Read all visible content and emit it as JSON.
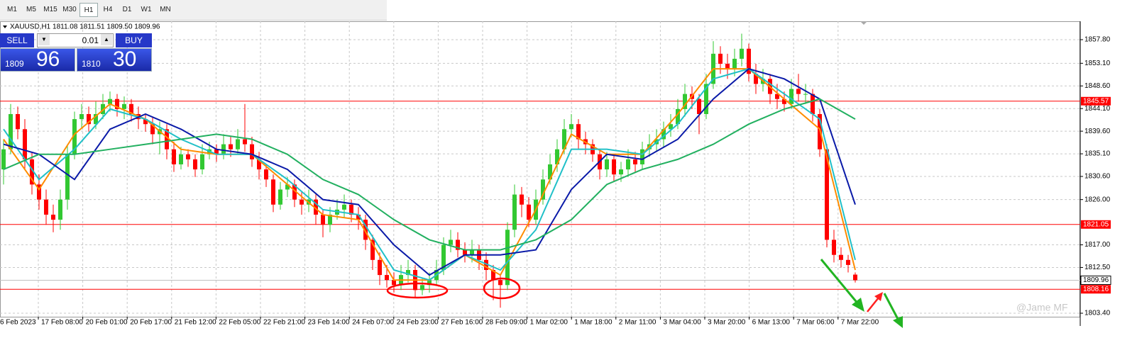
{
  "toolbar": {
    "timeframes": [
      "M1",
      "M5",
      "M15",
      "M30",
      "H1",
      "H4",
      "D1",
      "W1",
      "MN"
    ],
    "active": "H1"
  },
  "trade_panel": {
    "sell": "SELL",
    "buy": "BUY",
    "lot": "0.01",
    "sell_big": "1809",
    "sell_pips": "96",
    "buy_big": "1810",
    "buy_pips": "30"
  },
  "chart_data": {
    "type": "candlestick",
    "title": "XAUUSD,H1  1811.08 1811.51 1809.50 1809.96",
    "open": [
      1832,
      1836,
      1843,
      1840,
      1834,
      1829,
      1826,
      1823,
      1822,
      1826,
      1835,
      1842,
      1843,
      1841,
      1843,
      1845,
      1846,
      1844,
      1845,
      1843,
      1842,
      1841,
      1839,
      1840,
      1836,
      1833,
      1835,
      1834,
      1832,
      1835,
      1836,
      1835,
      1837,
      1836,
      1838,
      1837,
      1834,
      1832,
      1830,
      1825,
      1828,
      1829,
      1826,
      1825,
      1826,
      1823,
      1821,
      1823,
      1824,
      1825,
      1823,
      1822,
      1818,
      1814,
      1811,
      1810,
      1809,
      1811,
      1812,
      1808,
      1809,
      1810,
      1812,
      1817,
      1818,
      1816,
      1815,
      1816,
      1814,
      1812,
      1810,
      1809,
      1820,
      1827,
      1825,
      1822,
      1826,
      1830,
      1833,
      1836,
      1840,
      1841,
      1838,
      1837,
      1835,
      1832,
      1834,
      1831,
      1832,
      1834,
      1833,
      1836,
      1837,
      1838,
      1840,
      1841,
      1844,
      1847,
      1846,
      1843,
      1849,
      1855,
      1853,
      1852,
      1854,
      1856,
      1851,
      1849,
      1850,
      1847,
      1846,
      1845,
      1848,
      1847,
      1847,
      1843,
      1836,
      1818,
      1815,
      1814,
      1811.08
    ],
    "high": [
      1838,
      1845,
      1844.5,
      1842,
      1835.5,
      1831,
      1828,
      1825,
      1828,
      1837,
      1843.5,
      1845,
      1844.5,
      1845.5,
      1847,
      1847.5,
      1847,
      1846.5,
      1846,
      1844.5,
      1843,
      1842.5,
      1841.5,
      1841,
      1837.5,
      1836.5,
      1836,
      1835,
      1837,
      1837.5,
      1837,
      1839,
      1838.5,
      1840,
      1845,
      1838.5,
      1835.5,
      1833,
      1831,
      1829.5,
      1830.5,
      1830,
      1827.5,
      1828,
      1827,
      1824,
      1824.5,
      1826,
      1827,
      1826,
      1824.5,
      1823,
      1819,
      1815.5,
      1813,
      1811.5,
      1813,
      1814,
      1813,
      1810.5,
      1811.5,
      1814,
      1818.5,
      1820,
      1819.5,
      1817.5,
      1818,
      1817,
      1815.5,
      1813,
      1811,
      1821.5,
      1829,
      1828.5,
      1826.5,
      1828,
      1832,
      1835,
      1838,
      1842,
      1843,
      1842,
      1839.5,
      1838,
      1836,
      1835.5,
      1835,
      1833.5,
      1836,
      1835.5,
      1837.5,
      1839,
      1840,
      1841.5,
      1843,
      1846,
      1849,
      1848.5,
      1847,
      1851,
      1857.5,
      1856.5,
      1855,
      1856,
      1859,
      1857,
      1853,
      1852,
      1851,
      1849,
      1847.5,
      1850,
      1851,
      1849,
      1848,
      1844,
      1837,
      1820,
      1816.5,
      1815,
      1811.51
    ],
    "low": [
      1829,
      1835,
      1838,
      1832,
      1827,
      1824,
      1821,
      1819.5,
      1820,
      1824,
      1834,
      1840,
      1839.5,
      1840,
      1842,
      1843.5,
      1842.5,
      1842,
      1841.5,
      1840,
      1839.5,
      1837,
      1835,
      1834,
      1831.5,
      1832,
      1832.5,
      1830.5,
      1831,
      1834,
      1833.5,
      1834,
      1834.5,
      1835,
      1835.5,
      1832.5,
      1830,
      1828.5,
      1823.5,
      1824,
      1826.5,
      1824.5,
      1823,
      1823.5,
      1821,
      1818.5,
      1819.5,
      1822,
      1822.5,
      1821.5,
      1820,
      1816,
      1812,
      1809,
      1808.5,
      1807.5,
      1808,
      1809.5,
      1806.5,
      1807,
      1807.5,
      1809,
      1811,
      1815.5,
      1814.5,
      1813.5,
      1813.5,
      1812,
      1810,
      1806,
      1804.5,
      1808,
      1818.5,
      1822.5,
      1820.5,
      1821,
      1825,
      1829,
      1831.5,
      1835,
      1838.5,
      1836,
      1835,
      1833.5,
      1830,
      1830.5,
      1829.5,
      1829.5,
      1830.5,
      1831.5,
      1832,
      1834.5,
      1835.5,
      1836.5,
      1838.5,
      1840,
      1842.5,
      1844,
      1839,
      1842,
      1848,
      1851,
      1850,
      1850.5,
      1852.5,
      1849.5,
      1847,
      1847.5,
      1845,
      1844,
      1843.5,
      1844,
      1845.5,
      1845,
      1841.5,
      1834.5,
      1816.5,
      1813.5,
      1812.5,
      1811.5,
      1809.5
    ],
    "close": [
      1836,
      1843,
      1840,
      1834,
      1829,
      1826,
      1823,
      1822,
      1826,
      1835,
      1842,
      1843,
      1841,
      1843,
      1845,
      1846,
      1844,
      1845,
      1843,
      1842,
      1841,
      1839,
      1840,
      1836,
      1833,
      1835,
      1834,
      1832,
      1835,
      1836,
      1835,
      1837,
      1836,
      1838,
      1837,
      1834,
      1832,
      1830,
      1825,
      1828,
      1829,
      1826,
      1825,
      1826,
      1823,
      1821,
      1823,
      1824,
      1825,
      1823,
      1822,
      1818,
      1814,
      1811,
      1810,
      1809,
      1811,
      1812,
      1808,
      1809,
      1810,
      1812,
      1817,
      1818,
      1816,
      1815,
      1816,
      1814,
      1812,
      1810,
      1809,
      1820,
      1827,
      1825,
      1822,
      1826,
      1830,
      1833,
      1836,
      1840,
      1841,
      1838,
      1837,
      1835,
      1832,
      1834,
      1831,
      1832,
      1834,
      1833,
      1836,
      1837,
      1838,
      1840,
      1841,
      1844,
      1847,
      1846,
      1843,
      1849,
      1855,
      1853,
      1852,
      1854,
      1856,
      1851,
      1849,
      1850,
      1847,
      1846,
      1845,
      1848,
      1847,
      1847,
      1843,
      1836,
      1818,
      1815,
      1814,
      1813,
      1809.96
    ],
    "up_color": "#32c832",
    "down_color": "#ff0000",
    "moving_averages": [
      {
        "color": "#ff8c00",
        "x": [
          0,
          5,
          10,
          15,
          20,
          25,
          30,
          35,
          40,
          45,
          50,
          55,
          60,
          65,
          70,
          75,
          80,
          85,
          90,
          95,
          100,
          105,
          110,
          115,
          120
        ],
        "values": [
          1838,
          1828,
          1839,
          1845,
          1842,
          1836,
          1835,
          1835,
          1829,
          1823,
          1822,
          1810,
          1810,
          1815,
          1811,
          1824,
          1839,
          1835,
          1835,
          1843,
          1852,
          1852,
          1846,
          1840,
          1812
        ]
      },
      {
        "color": "#20c0c8",
        "x": [
          0,
          5,
          10,
          15,
          20,
          25,
          30,
          35,
          40,
          45,
          50,
          55,
          60,
          65,
          70,
          75,
          80,
          85,
          90,
          95,
          100,
          105,
          110,
          115,
          120
        ],
        "values": [
          1840,
          1830,
          1836,
          1844,
          1842,
          1838,
          1835,
          1835,
          1830,
          1824,
          1823,
          1812,
          1810,
          1815,
          1812,
          1820,
          1836,
          1836,
          1835,
          1841,
          1850,
          1852,
          1847,
          1842,
          1814
        ]
      },
      {
        "color": "#0a1aa8",
        "x": [
          0,
          5,
          10,
          15,
          20,
          25,
          30,
          35,
          40,
          45,
          50,
          55,
          60,
          65,
          70,
          75,
          80,
          85,
          90,
          95,
          100,
          105,
          110,
          115,
          120
        ],
        "values": [
          1837,
          1835,
          1830,
          1840,
          1843,
          1840,
          1836,
          1835,
          1832,
          1826,
          1825,
          1817,
          1811,
          1815,
          1815,
          1816,
          1828,
          1835,
          1834,
          1838,
          1846,
          1852,
          1850,
          1846,
          1825
        ]
      },
      {
        "color": "#22b060",
        "x": [
          0,
          5,
          10,
          15,
          20,
          25,
          30,
          35,
          40,
          45,
          50,
          55,
          60,
          65,
          70,
          75,
          80,
          85,
          90,
          95,
          100,
          105,
          110,
          115,
          120
        ],
        "values": [
          1832,
          1835,
          1835,
          1836,
          1837,
          1838,
          1839,
          1838,
          1835,
          1830,
          1827,
          1822,
          1818,
          1816,
          1816,
          1818,
          1822,
          1829,
          1832,
          1834,
          1837,
          1841,
          1844,
          1846,
          1842
        ]
      }
    ],
    "ylim": [
      1802.7,
      1861.46
    ],
    "yticks": [
      {
        "value": 1857.8,
        "label": "1857.80"
      },
      {
        "value": 1853.1,
        "label": "1853.10"
      },
      {
        "value": 1848.6,
        "label": "1848.60"
      },
      {
        "value": 1844.1,
        "label": "1844.10"
      },
      {
        "value": 1839.6,
        "label": "1839.60"
      },
      {
        "value": 1835.1,
        "label": "1835.10"
      },
      {
        "value": 1830.6,
        "label": "1830.60"
      },
      {
        "value": 1826,
        "label": "1826.00"
      },
      {
        "value": 1817,
        "label": "1817.00"
      },
      {
        "value": 1812.5,
        "label": "1812.50"
      },
      {
        "value": 1803.4,
        "label": "1803.40"
      }
    ],
    "levels": [
      1845.57,
      1821.05,
      1808.16
    ],
    "level_color": "#ff0000",
    "current_price": 1809.96,
    "time_labels": [
      "6 Feb 2023",
      "17 Feb 08:00",
      "20 Feb 01:00",
      "20 Feb 17:00",
      "21 Feb 12:00",
      "22 Feb 05:00",
      "22 Feb 21:00",
      "23 Feb 14:00",
      "24 Feb 07:00",
      "24 Feb 23:00",
      "27 Feb 16:00",
      "28 Feb 09:00",
      "1 Mar 02:00",
      "1 Mar 18:00",
      "2 Mar 11:00",
      "3 Mar 04:00",
      "3 Mar 20:00",
      "6 Mar 13:00",
      "7 Mar 06:00",
      "7 Mar 22:00"
    ],
    "grid": true,
    "watermark": "@Jame MF"
  }
}
